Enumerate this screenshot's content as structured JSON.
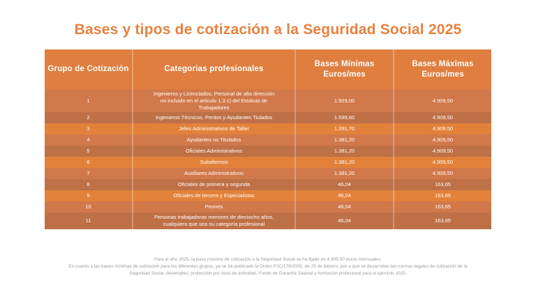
{
  "title": "Bases y tipos de cotización a la Seguridad Social 2025",
  "colors": {
    "accent_title": "#E8813E",
    "header_bg": "#DF7E3E",
    "row_medium": "#D1794B",
    "row_dark": "#BE7047",
    "row_bright": "#E2823A",
    "footer_text": "#9B9B9B",
    "cell_text": "#FFFFFF"
  },
  "table": {
    "headers": {
      "grupo": "Grupo de Cotización",
      "categoria": "Categorias profesionales",
      "minima": "Bases Mínimas\nEuros/mes",
      "maxima": "Bases Máximas\nEuros/mes"
    },
    "rows": [
      {
        "grupo": "1",
        "categoria": "Ingenieros y Licenciados, Personal de alta dirección no incluido en el articulo 1.3 c) del Estatuto de Trabajadores",
        "minima": "1.929,00",
        "maxima": "4.909,50"
      },
      {
        "grupo": "2",
        "categoria": "Ingenieros Técnicos, Peritos y Ayudantes Tiulados",
        "minima": "1.599,60",
        "maxima": "4.909,50"
      },
      {
        "grupo": "3",
        "categoria": "Jefes Administrativos de Taller",
        "minima": "1.391,70",
        "maxima": "4.909,50"
      },
      {
        "grupo": "4",
        "categoria": "Ayudantes no Titulados",
        "minima": "1.381,20",
        "maxima": "4.909,50"
      },
      {
        "grupo": "5",
        "categoria": "Oficiales Administrativos",
        "minima": "1.381,20",
        "maxima": "4.909,50"
      },
      {
        "grupo": "6",
        "categoria": "Subalternos",
        "minima": "1.381,20",
        "maxima": "4.909,50"
      },
      {
        "grupo": "7",
        "categoria": "Auxiliares Administrativos",
        "minima": "1.381,20",
        "maxima": "4.909,50"
      },
      {
        "grupo": "8",
        "categoria": "Oficiales de primera y segunda",
        "minima": "46,04",
        "maxima": "163,65"
      },
      {
        "grupo": "9",
        "categoria": "Oficiales de tercera y Especialistas",
        "minima": "46,04",
        "maxima": "163,65"
      },
      {
        "grupo": "10",
        "categoria": "Peones",
        "minima": "46,04",
        "maxima": "163,65"
      },
      {
        "grupo": "11",
        "categoria": "Personas trabajadoras menores de dieciocho años, cualquiera que sea su categoría profesional",
        "minima": "46,04",
        "maxima": "163,65"
      }
    ]
  },
  "footer": {
    "line1": "Para el año 2025, la base máxima de cotización a la Seguridad Social se ha fijado en 4.909,50 euros mensuales.",
    "line2": "En cuanto a las bases mínimas de cotización para los diferentes grupos, ya se ha publicado la Orden PJC/178/2005, de 25 de febrero, por a que se desarrollan las normas legales de cotización de la",
    "line3": "Seguridad Social, desempleo, protección por cese de actividad, Fondo de Garantía Salarial y formación profesional para el ejercicio 2025."
  },
  "chart_data": {
    "type": "table",
    "title": "Bases y tipos de cotización a la Seguridad Social 2025",
    "columns": [
      "Grupo de Cotización",
      "Categorias profesionales",
      "Bases Mínimas Euros/mes",
      "Bases Máximas Euros/mes"
    ],
    "rows": [
      [
        "1",
        "Ingenieros y Licenciados, Personal de alta dirección no incluido en el articulo 1.3 c) del Estatuto de Trabajadores",
        "1.929,00",
        "4.909,50"
      ],
      [
        "2",
        "Ingenieros Técnicos, Peritos y Ayudantes Tiulados",
        "1.599,60",
        "4.909,50"
      ],
      [
        "3",
        "Jefes Administrativos de Taller",
        "1.391,70",
        "4.909,50"
      ],
      [
        "4",
        "Ayudantes no Titulados",
        "1.381,20",
        "4.909,50"
      ],
      [
        "5",
        "Oficiales Administrativos",
        "1.381,20",
        "4.909,50"
      ],
      [
        "6",
        "Subalternos",
        "1.381,20",
        "4.909,50"
      ],
      [
        "7",
        "Auxiliares Administrativos",
        "1.381,20",
        "4.909,50"
      ],
      [
        "8",
        "Oficiales de primera y segunda",
        "46,04",
        "163,65"
      ],
      [
        "9",
        "Oficiales de tercera y Especialistas",
        "46,04",
        "163,65"
      ],
      [
        "10",
        "Peones",
        "46,04",
        "163,65"
      ],
      [
        "11",
        "Personas trabajadoras menores de dieciocho años, cualquiera que sea su categoría profesional",
        "46,04",
        "163,65"
      ]
    ]
  }
}
